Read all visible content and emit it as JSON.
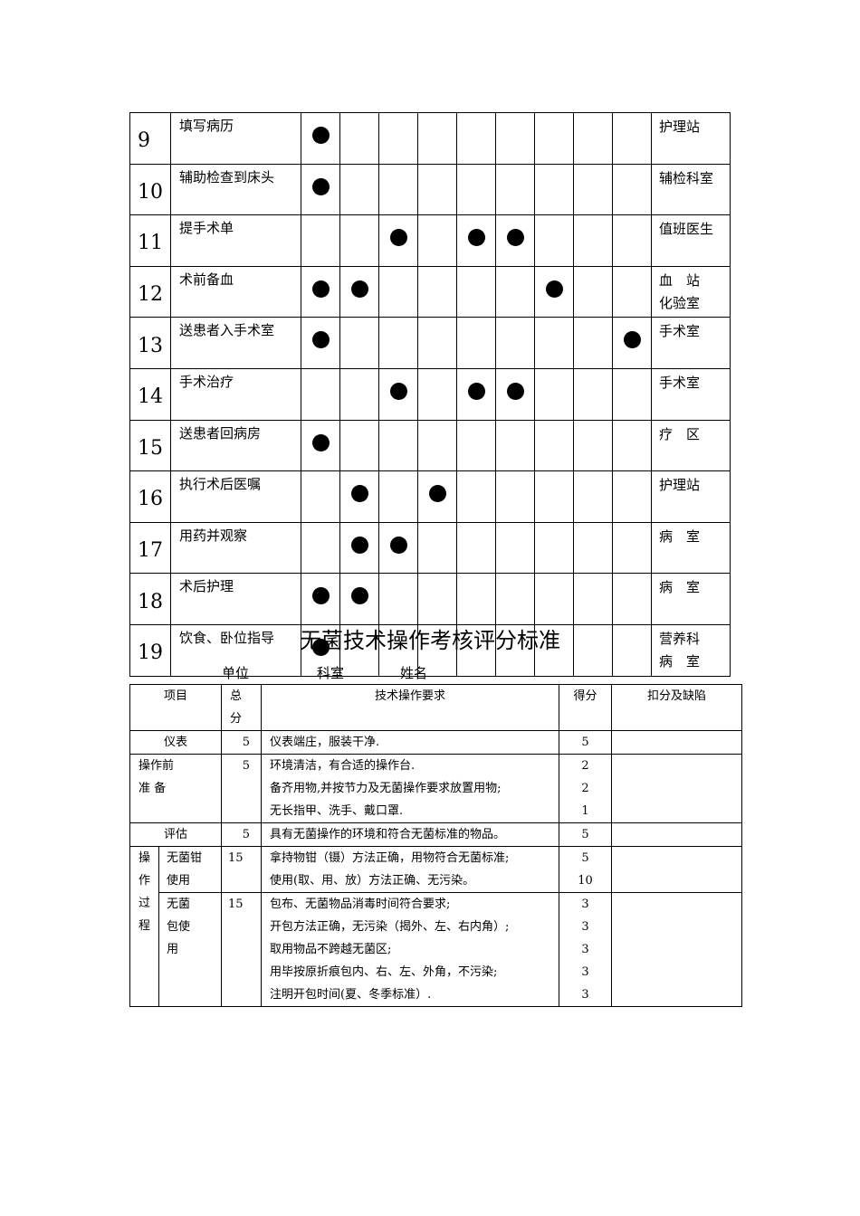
{
  "flow_table": {
    "rows": [
      {
        "no": "9",
        "name": "填写病历",
        "dots": [
          1
        ],
        "dept": [
          "护理站"
        ]
      },
      {
        "no": "10",
        "name": "辅助检查到床头",
        "dots": [
          1
        ],
        "dept": [
          "辅检科室"
        ]
      },
      {
        "no": "11",
        "name": "提手术单",
        "dots": [
          3,
          5,
          6
        ],
        "dept": [
          "值班医生"
        ]
      },
      {
        "no": "12",
        "name": "术前备血",
        "dots": [
          1,
          2,
          7
        ],
        "dept": [
          "血　站",
          "化验室"
        ]
      },
      {
        "no": "13",
        "name": "送患者入手术室",
        "dots": [
          1,
          9
        ],
        "dept": [
          "手术室"
        ]
      },
      {
        "no": "14",
        "name": "手术治疗",
        "dots": [
          3,
          5,
          6
        ],
        "dept": [
          "手术室"
        ]
      },
      {
        "no": "15",
        "name": "送患者回病房",
        "dots": [
          1
        ],
        "dept": [
          "疗　区"
        ]
      },
      {
        "no": "16",
        "name": "执行术后医嘱",
        "dots": [
          2,
          4
        ],
        "dept": [
          "护理站"
        ]
      },
      {
        "no": "17",
        "name": "用药并观察",
        "dots": [
          2,
          3
        ],
        "dept": [
          "病　室"
        ]
      },
      {
        "no": "18",
        "name": "术后护理",
        "dots": [
          1,
          2
        ],
        "dept": [
          "病　室"
        ]
      },
      {
        "no": "19",
        "name": "饮食、卧位指导",
        "dots": [
          1
        ],
        "dept": [
          "营养科",
          "病　室"
        ]
      }
    ]
  },
  "score_sheet": {
    "title": "无菌技术操作考核评分标准",
    "unit_label": "单位",
    "dept_label": "科室",
    "name_label": "姓名",
    "headers": {
      "item": "项目",
      "total": [
        "总",
        "分"
      ],
      "requirement": "技术操作要求",
      "score": "得分",
      "deduction": "扣分及缺陷"
    },
    "rows": [
      {
        "item": "仪表",
        "total": "5",
        "reqs": [
          "仪表端庄，服装干净."
        ],
        "scores": [
          "5"
        ]
      },
      {
        "item_lines": [
          "操作前",
          "准  备"
        ],
        "total": "5",
        "reqs": [
          "环境清洁，有合适的操作台.",
          "备齐用物,并按节力及无菌操作要求放置用物;",
          "无长指甲、洗手、戴口罩."
        ],
        "scores": [
          "2",
          "2",
          "1"
        ]
      },
      {
        "item": "评估",
        "total": "5",
        "reqs": [
          "具有无菌操作的环境和符合无菌标准的物品。"
        ],
        "scores": [
          "5"
        ]
      }
    ],
    "process_label": [
      "操",
      "作",
      "过",
      "程"
    ],
    "process_rows": [
      {
        "sub": [
          "无菌钳",
          "使用"
        ],
        "total": "15",
        "reqs": [
          "拿持物钳（镊）方法正确，用物符合无菌标准;",
          "使用(取、用、放）方法正确、无污染。"
        ],
        "scores": [
          "5",
          "10"
        ]
      },
      {
        "sub": [
          "无菌",
          "包使",
          "用"
        ],
        "total": "15",
        "reqs": [
          "包布、无菌物品消毒时间符合要求;",
          "开包方法正确，无污染（揭外、左、右内角）;",
          "取用物品不跨越无菌区;",
          "用毕按原折痕包内、右、左、外角，不污染;",
          "注明开包时间(夏、冬季标准）."
        ],
        "scores": [
          "3",
          "3",
          "3",
          "3",
          "3"
        ]
      }
    ]
  }
}
